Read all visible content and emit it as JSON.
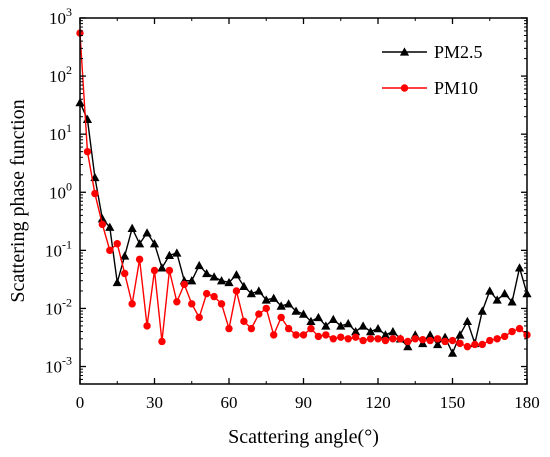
{
  "chart_data": {
    "type": "line",
    "title": "",
    "xlabel": "Scattering angle(°)",
    "ylabel": "Scattering phase function",
    "xlim": [
      0,
      180
    ],
    "ylim": [
      0.0005,
      1000
    ],
    "y_scale": "log",
    "grid": false,
    "legend_position": "top-right",
    "x_ticks": [
      0,
      30,
      60,
      90,
      120,
      150,
      180
    ],
    "x_tick_labels": [
      "0",
      "30",
      "60",
      "90",
      "120",
      "150",
      "180"
    ],
    "y_ticks": [
      0.001,
      0.01,
      0.1,
      1,
      10,
      100,
      1000
    ],
    "y_tick_labels": [
      {
        "base": "10",
        "exp": "-3"
      },
      {
        "base": "10",
        "exp": "-2"
      },
      {
        "base": "10",
        "exp": "-1"
      },
      {
        "base": "10",
        "exp": "0"
      },
      {
        "base": "10",
        "exp": "1"
      },
      {
        "base": "10",
        "exp": "2"
      },
      {
        "base": "10",
        "exp": "3"
      }
    ],
    "series": [
      {
        "name": "PM2.5",
        "color": "#000000",
        "marker": "triangle",
        "points": [
          [
            0,
            35
          ],
          [
            3,
            18
          ],
          [
            6,
            1.8
          ],
          [
            9,
            0.35
          ],
          [
            12,
            0.25
          ],
          [
            15,
            0.028
          ],
          [
            18,
            0.08
          ],
          [
            21,
            0.24
          ],
          [
            24,
            0.13
          ],
          [
            27,
            0.2
          ],
          [
            30,
            0.13
          ],
          [
            33,
            0.05
          ],
          [
            36,
            0.082
          ],
          [
            39,
            0.09
          ],
          [
            42,
            0.03
          ],
          [
            45,
            0.03
          ],
          [
            48,
            0.055
          ],
          [
            51,
            0.04
          ],
          [
            54,
            0.035
          ],
          [
            57,
            0.03
          ],
          [
            60,
            0.028
          ],
          [
            63,
            0.038
          ],
          [
            66,
            0.024
          ],
          [
            69,
            0.018
          ],
          [
            72,
            0.02
          ],
          [
            75,
            0.014
          ],
          [
            78,
            0.015
          ],
          [
            81,
            0.011
          ],
          [
            84,
            0.012
          ],
          [
            87,
            0.009
          ],
          [
            90,
            0.008
          ],
          [
            93,
            0.006
          ],
          [
            96,
            0.007
          ],
          [
            99,
            0.005
          ],
          [
            102,
            0.0065
          ],
          [
            105,
            0.005
          ],
          [
            108,
            0.0055
          ],
          [
            111,
            0.004
          ],
          [
            114,
            0.005
          ],
          [
            117,
            0.004
          ],
          [
            120,
            0.0045
          ],
          [
            123,
            0.0035
          ],
          [
            126,
            0.004
          ],
          [
            129,
            0.003
          ],
          [
            132,
            0.0022
          ],
          [
            135,
            0.0035
          ],
          [
            138,
            0.0025
          ],
          [
            141,
            0.0035
          ],
          [
            144,
            0.0024
          ],
          [
            147,
            0.0032
          ],
          [
            150,
            0.0017
          ],
          [
            153,
            0.0035
          ],
          [
            156,
            0.006
          ],
          [
            159,
            0.0025
          ],
          [
            162,
            0.009
          ],
          [
            165,
            0.02
          ],
          [
            168,
            0.014
          ],
          [
            171,
            0.018
          ],
          [
            174,
            0.013
          ],
          [
            177,
            0.05
          ],
          [
            180,
            0.018
          ]
        ]
      },
      {
        "name": "PM10",
        "color": "#ff0000",
        "marker": "circle",
        "points": [
          [
            0,
            550
          ],
          [
            3,
            5
          ],
          [
            6,
            0.95
          ],
          [
            9,
            0.28
          ],
          [
            12,
            0.1
          ],
          [
            15,
            0.13
          ],
          [
            18,
            0.04
          ],
          [
            21,
            0.012
          ],
          [
            24,
            0.07
          ],
          [
            27,
            0.005
          ],
          [
            30,
            0.045
          ],
          [
            33,
            0.0027
          ],
          [
            36,
            0.045
          ],
          [
            39,
            0.013
          ],
          [
            42,
            0.026
          ],
          [
            45,
            0.012
          ],
          [
            48,
            0.007
          ],
          [
            51,
            0.018
          ],
          [
            54,
            0.016
          ],
          [
            57,
            0.012
          ],
          [
            60,
            0.0045
          ],
          [
            63,
            0.02
          ],
          [
            66,
            0.006
          ],
          [
            69,
            0.0045
          ],
          [
            72,
            0.008
          ],
          [
            75,
            0.01
          ],
          [
            78,
            0.0035
          ],
          [
            81,
            0.007
          ],
          [
            84,
            0.0045
          ],
          [
            87,
            0.0035
          ],
          [
            90,
            0.0035
          ],
          [
            93,
            0.0045
          ],
          [
            96,
            0.0033
          ],
          [
            99,
            0.0035
          ],
          [
            102,
            0.003
          ],
          [
            105,
            0.0032
          ],
          [
            108,
            0.003
          ],
          [
            111,
            0.0032
          ],
          [
            114,
            0.0028
          ],
          [
            117,
            0.003
          ],
          [
            120,
            0.003
          ],
          [
            123,
            0.0028
          ],
          [
            126,
            0.003
          ],
          [
            129,
            0.003
          ],
          [
            132,
            0.0027
          ],
          [
            135,
            0.003
          ],
          [
            138,
            0.0029
          ],
          [
            141,
            0.0028
          ],
          [
            144,
            0.003
          ],
          [
            147,
            0.0027
          ],
          [
            150,
            0.0028
          ],
          [
            153,
            0.0025
          ],
          [
            156,
            0.0022
          ],
          [
            159,
            0.0024
          ],
          [
            162,
            0.0024
          ],
          [
            165,
            0.0028
          ],
          [
            168,
            0.003
          ],
          [
            171,
            0.0033
          ],
          [
            174,
            0.004
          ],
          [
            177,
            0.0045
          ],
          [
            180,
            0.0035
          ]
        ]
      }
    ]
  }
}
